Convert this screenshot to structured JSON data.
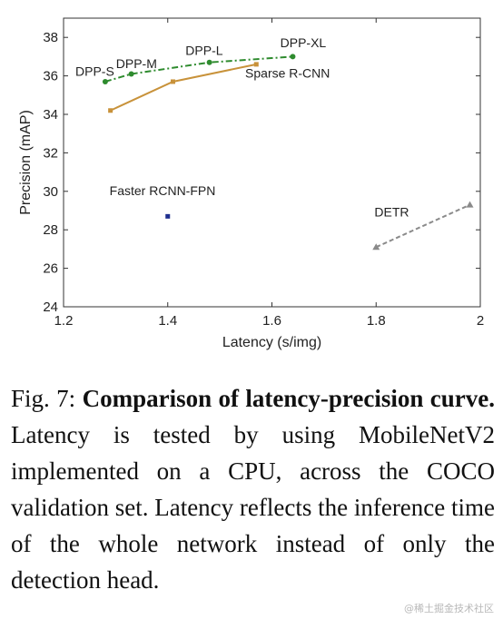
{
  "chart_data": {
    "type": "line",
    "xlabel": "Latency (s/img)",
    "ylabel": "Precision (mAP)",
    "xlim": [
      1.2,
      2.0
    ],
    "ylim": [
      24,
      39
    ],
    "xticks": [
      "1.2",
      "1.4",
      "1.6",
      "1.8",
      "2"
    ],
    "xtick_values": [
      1.2,
      1.4,
      1.6,
      1.8,
      2.0
    ],
    "yticks": [
      "24",
      "26",
      "28",
      "30",
      "32",
      "34",
      "36",
      "38"
    ],
    "ytick_values": [
      24,
      26,
      28,
      30,
      32,
      34,
      36,
      38
    ],
    "grid": false,
    "series": [
      {
        "name": "DPP",
        "color": "#2e8b2e",
        "style": "dash-dot",
        "marker": "circle",
        "points": [
          {
            "x": 1.28,
            "y": 35.7,
            "label": "DPP-S"
          },
          {
            "x": 1.33,
            "y": 36.1,
            "label": "DPP-M"
          },
          {
            "x": 1.48,
            "y": 36.7,
            "label": "DPP-L"
          },
          {
            "x": 1.64,
            "y": 37.0,
            "label": "DPP-XL"
          }
        ]
      },
      {
        "name": "Sparse R-CNN",
        "color": "#c8923a",
        "style": "solid",
        "marker": "square",
        "points": [
          {
            "x": 1.29,
            "y": 34.2
          },
          {
            "x": 1.41,
            "y": 35.7
          },
          {
            "x": 1.57,
            "y": 36.6
          }
        ]
      },
      {
        "name": "Faster RCNN-FPN",
        "color": "#1f2f8f",
        "style": "none",
        "marker": "square",
        "points": [
          {
            "x": 1.4,
            "y": 28.7
          }
        ]
      },
      {
        "name": "DETR",
        "color": "#8a8a8a",
        "style": "dashed",
        "marker": "triangle",
        "points": [
          {
            "x": 1.8,
            "y": 27.1
          },
          {
            "x": 1.98,
            "y": 29.3
          }
        ]
      }
    ],
    "annotations": [
      {
        "text": "DPP-S",
        "x": 1.26,
        "y": 36.0
      },
      {
        "text": "DPP-M",
        "x": 1.34,
        "y": 36.4
      },
      {
        "text": "DPP-L",
        "x": 1.47,
        "y": 37.1
      },
      {
        "text": "DPP-XL",
        "x": 1.66,
        "y": 37.5
      },
      {
        "text": "Sparse R-CNN",
        "x": 1.63,
        "y": 35.9
      },
      {
        "text": "Faster RCNN-FPN",
        "x": 1.39,
        "y": 29.8
      },
      {
        "text": "DETR",
        "x": 1.83,
        "y": 28.7
      }
    ]
  },
  "caption": {
    "prefix": "Fig. 7: ",
    "bold": "Comparison of latency-precision curve.",
    "body": " Latency is tested by using MobileNetV2 implemented on a CPU, across the COCO validation set. Latency reflects the inference time of the whole network instead of only the detection head."
  },
  "watermark": "@稀土掘金技术社区"
}
